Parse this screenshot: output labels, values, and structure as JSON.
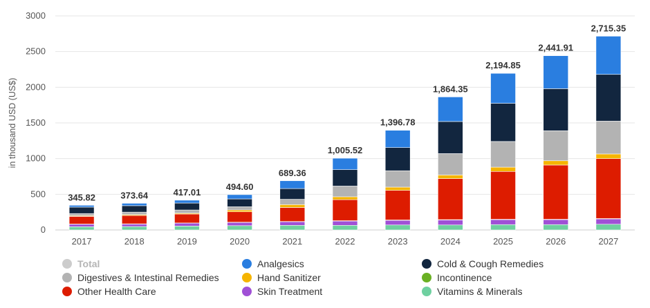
{
  "chart_data": {
    "type": "bar",
    "stacked": true,
    "ylabel": "in thousand USD (US$)",
    "ylim": [
      0,
      3000
    ],
    "yticks": [
      0,
      500,
      1000,
      1500,
      2000,
      2500,
      3000
    ],
    "grid": true,
    "legend_position": "bottom",
    "categories": [
      "2017",
      "2018",
      "2019",
      "2020",
      "2021",
      "2022",
      "2023",
      "2024",
      "2025",
      "2026",
      "2027"
    ],
    "totals": [
      345.82,
      373.64,
      417.01,
      494.6,
      689.36,
      1005.52,
      1396.78,
      1864.35,
      2194.85,
      2441.91,
      2715.35
    ],
    "total_labels": [
      "345.82",
      "373.64",
      "417.01",
      "494.60",
      "689.36",
      "1,005.52",
      "1,396.78",
      "1,864.35",
      "2,194.85",
      "2,441.91",
      "2,715.35"
    ],
    "legend": [
      {
        "name": "Total",
        "color": "#cccccc",
        "hidden": true
      },
      {
        "name": "Analgesics",
        "color": "#2a7ee0"
      },
      {
        "name": "Cold & Cough Remedies",
        "color": "#12263f"
      },
      {
        "name": "Digestives & Intestinal Remedies",
        "color": "#b3b3b3"
      },
      {
        "name": "Hand Sanitizer",
        "color": "#f5b400"
      },
      {
        "name": "Incontinence",
        "color": "#6ab023"
      },
      {
        "name": "Other Health Care",
        "color": "#dd1c00"
      },
      {
        "name": "Skin Treatment",
        "color": "#a050d6"
      },
      {
        "name": "Vitamins & Minerals",
        "color": "#6fd0a0"
      }
    ],
    "series": [
      {
        "name": "Vitamins & Minerals",
        "color": "#6fd0a0",
        "values": [
          45,
          48,
          55,
          60,
          65,
          65,
          70,
          70,
          75,
          75,
          80
        ]
      },
      {
        "name": "Skin Treatment",
        "color": "#a050d6",
        "values": [
          35,
          35,
          40,
          45,
          50,
          60,
          65,
          70,
          70,
          70,
          75
        ]
      },
      {
        "name": "Incontinence",
        "color": "#6ab023",
        "values": [
          3,
          3,
          3,
          4,
          4,
          5,
          5,
          5,
          5,
          5,
          5
        ]
      },
      {
        "name": "Other Health Care",
        "color": "#dd1c00",
        "values": [
          107,
          117,
          125,
          146,
          196,
          295,
          415,
          575,
          670,
          760,
          840
        ]
      },
      {
        "name": "Hand Sanitizer",
        "color": "#f5b400",
        "values": [
          10,
          12,
          12,
          25,
          40,
          40,
          45,
          50,
          60,
          60,
          65
        ]
      },
      {
        "name": "Digestives & Intestinal Remedies",
        "color": "#b3b3b3",
        "values": [
          30,
          35,
          45,
          45,
          75,
          150,
          230,
          300,
          360,
          420,
          460
        ]
      },
      {
        "name": "Cold & Cough Remedies",
        "color": "#12263f",
        "values": [
          90,
          90,
          97,
          110,
          150,
          230,
          325,
          450,
          535,
          590,
          655
        ]
      },
      {
        "name": "Analgesics",
        "color": "#2a7ee0",
        "values": [
          25.82,
          33.64,
          40.01,
          59.6,
          109.36,
          160.52,
          241.78,
          344.35,
          419.85,
          461.91,
          535.35
        ]
      }
    ]
  }
}
